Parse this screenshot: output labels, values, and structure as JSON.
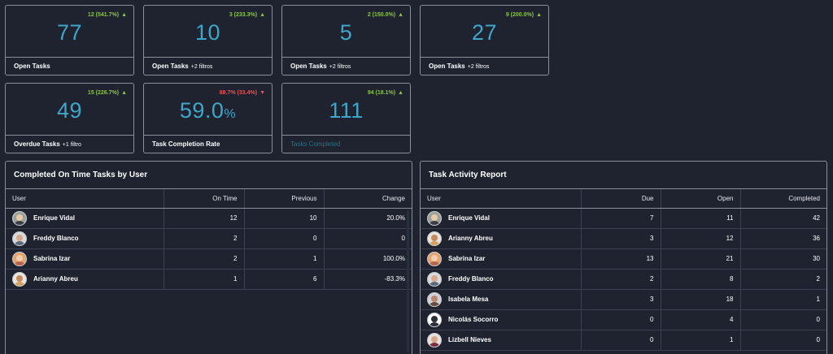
{
  "kpis": [
    {
      "value": "77",
      "delta": "12 (541.7%)",
      "direction": "up",
      "label": "Open Tasks",
      "sub": ""
    },
    {
      "value": "10",
      "delta": "3 (233.3%)",
      "direction": "up",
      "label": "Open Tasks",
      "sub": "+2 filtros"
    },
    {
      "value": "5",
      "delta": "2 (150.0%)",
      "direction": "up",
      "label": "Open Tasks",
      "sub": "+2 filtros"
    },
    {
      "value": "27",
      "delta": "9 (200.0%)",
      "direction": "up",
      "label": "Open Tasks",
      "sub": "+2 filtros"
    },
    {
      "value": "49",
      "delta": "15 (226.7%)",
      "direction": "up",
      "label": "Overdue Tasks",
      "sub": "+1 filtro"
    },
    {
      "value": "59.0",
      "unit": "%",
      "delta": "88.7% (33.4%)",
      "direction": "down",
      "label": "Task Completion Rate",
      "sub": ""
    },
    {
      "value": "111",
      "delta": "94 (18.1%)",
      "direction": "up",
      "label": "Tasks Completed",
      "sub": ""
    }
  ],
  "arrows": {
    "up": "▲",
    "down": "▼"
  },
  "colors": {
    "background": "#1f2330",
    "accent": "#3ea6c8",
    "up": "#8bc34a",
    "down": "#e05555"
  },
  "ontime": {
    "title": "Completed On Time Tasks by User",
    "headers": [
      "User",
      "On Time",
      "Previous",
      "Change"
    ],
    "rows": [
      {
        "user": "Enrique Vidal",
        "on_time": "12",
        "previous": "10",
        "change": "20.0%"
      },
      {
        "user": "Freddy Blanco",
        "on_time": "2",
        "previous": "0",
        "change": "0"
      },
      {
        "user": "Sabrina Izar",
        "on_time": "2",
        "previous": "1",
        "change": "100.0%"
      },
      {
        "user": "Arianny Abreu",
        "on_time": "1",
        "previous": "6",
        "change": "-83.3%"
      }
    ]
  },
  "activity": {
    "title": "Task Activity Report",
    "headers": [
      "User",
      "Due",
      "Open",
      "Completed"
    ],
    "rows": [
      {
        "user": "Enrique Vidal",
        "due": "7",
        "open": "11",
        "completed": "42"
      },
      {
        "user": "Arianny Abreu",
        "due": "3",
        "open": "12",
        "completed": "36"
      },
      {
        "user": "Sabrina Izar",
        "due": "13",
        "open": "21",
        "completed": "30"
      },
      {
        "user": "Freddy Blanco",
        "due": "2",
        "open": "8",
        "completed": "2"
      },
      {
        "user": "Isabela Mesa",
        "due": "3",
        "open": "18",
        "completed": "1"
      },
      {
        "user": "Nicolás Socorro",
        "due": "0",
        "open": "4",
        "completed": "0"
      },
      {
        "user": "Lizbell Nieves",
        "due": "0",
        "open": "1",
        "completed": "0"
      }
    ]
  }
}
